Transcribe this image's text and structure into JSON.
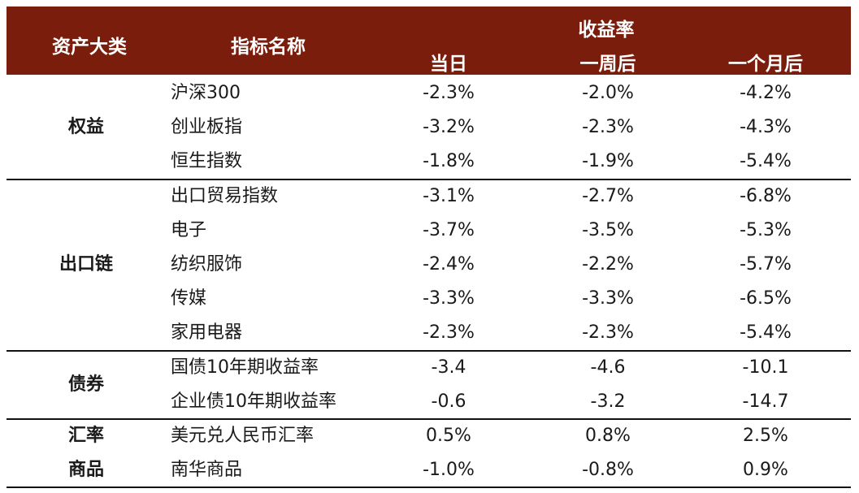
{
  "header": {
    "col_category": "资产大类",
    "col_indicator": "指标名称",
    "col_return_group": "收益率",
    "col_same_day": "当日",
    "col_one_week": "一周后",
    "col_one_month": "一个月后"
  },
  "groups": [
    {
      "category_lines": [
        "权益"
      ],
      "rows": [
        {
          "name": "沪深300",
          "same_day": "-2.3%",
          "one_week": "-2.0%",
          "one_month": "-4.2%"
        },
        {
          "name": "创业板指",
          "same_day": "-3.2%",
          "one_week": "-2.3%",
          "one_month": "-4.3%"
        },
        {
          "name": "恒生指数",
          "same_day": "-1.8%",
          "one_week": "-1.9%",
          "one_month": "-5.4%"
        }
      ]
    },
    {
      "category_lines": [
        "出口链"
      ],
      "rows": [
        {
          "name": "出口贸易指数",
          "same_day": "-3.1%",
          "one_week": "-2.7%",
          "one_month": "-6.8%"
        },
        {
          "name": "电子",
          "same_day": "-3.7%",
          "one_week": "-3.5%",
          "one_month": "-5.3%"
        },
        {
          "name": "纺织服饰",
          "same_day": "-2.4%",
          "one_week": "-2.2%",
          "one_month": "-5.7%"
        },
        {
          "name": "传媒",
          "same_day": "-3.3%",
          "one_week": "-3.3%",
          "one_month": "-6.5%"
        },
        {
          "name": "家用电器",
          "same_day": "-2.3%",
          "one_week": "-2.3%",
          "one_month": "-5.4%"
        }
      ]
    },
    {
      "category_lines": [
        "债券"
      ],
      "rows": [
        {
          "name": "国债10年期收益率",
          "same_day": "-3.4",
          "one_week": "-4.6",
          "one_month": "-10.1"
        },
        {
          "name": "企业债10年期收益率",
          "same_day": "-0.6",
          "one_week": "-3.2",
          "one_month": "-14.7"
        }
      ]
    },
    {
      "category_lines": [
        "汇率",
        "商品"
      ],
      "rows": [
        {
          "name": "美元兑人民币汇率",
          "same_day": "0.5%",
          "one_week": "0.8%",
          "one_month": "2.5%"
        },
        {
          "name": "南华商品",
          "same_day": "-1.0%",
          "one_week": "-0.8%",
          "one_month": "0.9%"
        }
      ]
    }
  ]
}
